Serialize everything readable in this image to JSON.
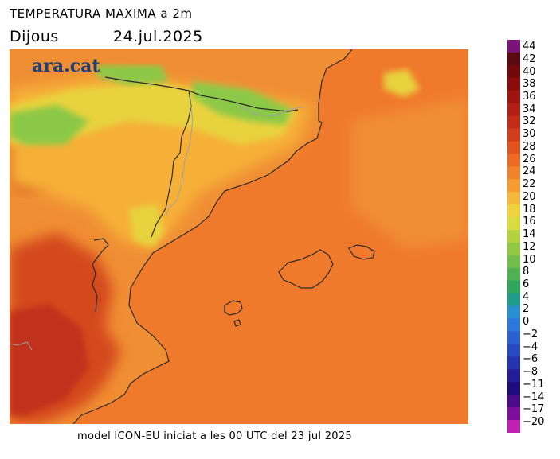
{
  "header": {
    "title": "TEMPERATURA MAXIMA a 2m",
    "day": "Dijous",
    "date": "24.jul.2025"
  },
  "logo": {
    "text": "ara.cat"
  },
  "caption": "model ICON-EU iniciat a les 00 UTC del 23 jul 2025",
  "legend": {
    "labels": [
      "44",
      "42",
      "40",
      "38",
      "36",
      "34",
      "32",
      "30",
      "28",
      "26",
      "24",
      "22",
      "20",
      "18",
      "16",
      "14",
      "12",
      "10",
      "8",
      "6",
      "4",
      "2",
      "0",
      "−2",
      "−4",
      "−6",
      "−8",
      "−11",
      "−14",
      "−17",
      "−20"
    ],
    "colors": [
      "#7a1478",
      "#5a0a10",
      "#74080a",
      "#8c0c0c",
      "#a01410",
      "#b41e14",
      "#c42c18",
      "#d43c1c",
      "#e4521e",
      "#ee6a22",
      "#f4822a",
      "#f69c30",
      "#f6b838",
      "#f2d23c",
      "#d8dc3c",
      "#b4d23e",
      "#92c842",
      "#72be4a",
      "#4eb250",
      "#2ea65c",
      "#1e9c8a",
      "#2a8ed2",
      "#2c78dc",
      "#2a60d4",
      "#2848c4",
      "#2634b0",
      "#241c98",
      "#1c0c80",
      "#4a0c8c",
      "#7e0c9c",
      "#c020b4"
    ]
  },
  "map_colors": {
    "sea": "#f07a2c",
    "land_base": "#f08e34",
    "hot_inland": "#d4481e",
    "very_hot": "#c0301a",
    "mild": "#f6b038",
    "cool": "#e8d23c",
    "cold_mountain": "#8cc846",
    "border_line": "#2a2a2a",
    "admin_line": "#a0a0a0"
  }
}
